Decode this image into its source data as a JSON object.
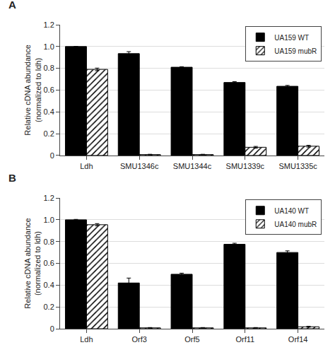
{
  "chart_data": [
    {
      "type": "bar",
      "title": "A",
      "categories": [
        "Ldh",
        "SMU1346c",
        "SMU1344c",
        "SMU1339c",
        "SMU1335c"
      ],
      "series": [
        {
          "name": "UA159 WT",
          "color": "#000000",
          "values": [
            1.0,
            0.935,
            0.81,
            0.67,
            0.635
          ],
          "errors": [
            0.0,
            0.018,
            0.005,
            0.008,
            0.008
          ]
        },
        {
          "name": "UA159 mubR",
          "color": "#ffffff",
          "values": [
            0.79,
            0.008,
            0.008,
            0.075,
            0.085
          ],
          "errors": [
            0.012,
            0.003,
            0.003,
            0.008,
            0.008
          ]
        }
      ],
      "ylabel": "Relative cDNA abundance\n(normalized to ldh)",
      "ylim": [
        0,
        1.2
      ],
      "yticks": [
        0,
        0.2,
        0.4,
        0.6,
        0.8,
        {
          "value": 1.0,
          "label": "1.0"
        },
        1.2
      ],
      "grid": true,
      "legend": "upper right"
    },
    {
      "type": "bar",
      "title": "B",
      "categories": [
        "Ldh",
        "Orf3",
        "Orf5",
        "Orf11",
        "Orf14"
      ],
      "series": [
        {
          "name": "UA140 WT",
          "color": "#000000",
          "values": [
            1.0,
            0.42,
            0.5,
            0.775,
            0.7
          ],
          "errors": [
            0.004,
            0.045,
            0.01,
            0.01,
            0.015
          ]
        },
        {
          "name": "UA140 mubR",
          "color": "#ffffff",
          "values": [
            0.955,
            0.008,
            0.008,
            0.008,
            0.018
          ],
          "errors": [
            0.01,
            0.003,
            0.003,
            0.003,
            0.004
          ]
        }
      ],
      "ylabel": "Relative cDNA abundance\n(normalized to ldh)",
      "ylim": [
        0,
        1.2
      ],
      "yticks": [
        0,
        0.2,
        0.4,
        0.6,
        0.8,
        {
          "value": 1.0,
          "label": "1.0"
        },
        1.2
      ],
      "grid": true,
      "legend": "upper right"
    }
  ]
}
